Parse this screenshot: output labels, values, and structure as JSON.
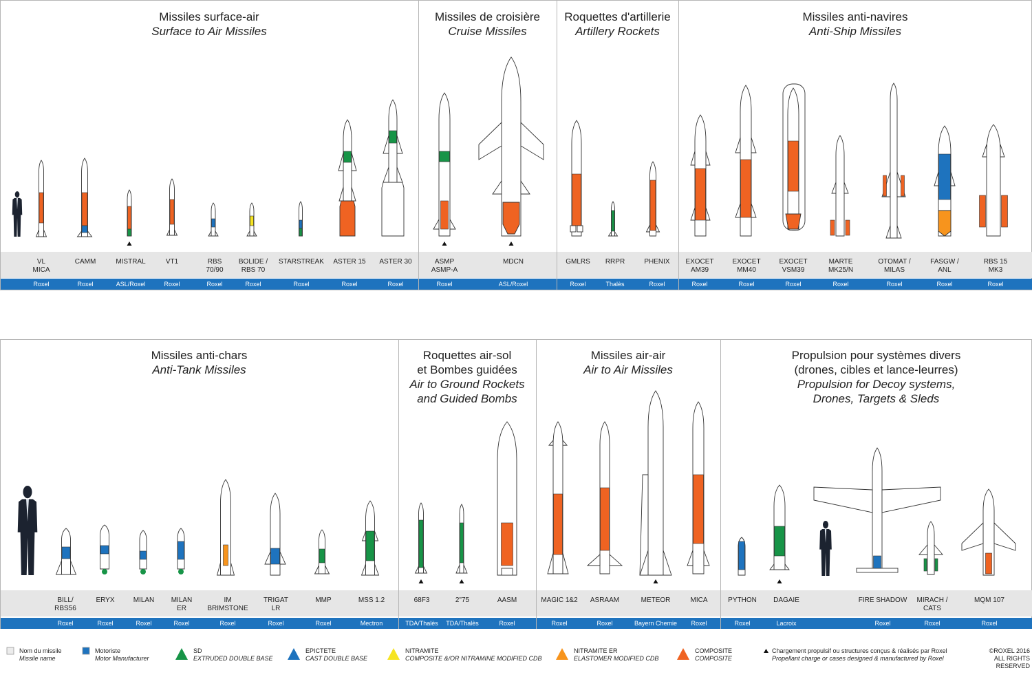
{
  "colors": {
    "composite": "#ef6322",
    "extruded_double_base": "#179447",
    "cast_double_base": "#1e73be",
    "nitramite": "#f6e421",
    "nitramite_er": "#f7941d",
    "maker_band": "#1e73be",
    "name_band": "#e6e6e6"
  },
  "top_sections": [
    {
      "fr": "Missiles surface-air",
      "en": "Surface to Air Missiles",
      "missiles": [
        {
          "name": "VL\nMICA",
          "maker": "Roxel"
        },
        {
          "name": "CAMM",
          "maker": "Roxel"
        },
        {
          "name": "MISTRAL",
          "maker": "ASL/Roxel"
        },
        {
          "name": "VT1",
          "maker": "Roxel"
        },
        {
          "name": "RBS\n70/90",
          "maker": "Roxel"
        },
        {
          "name": "BOLIDE /\nRBS 70",
          "maker": "Roxel"
        },
        {
          "name": "STARSTREAK",
          "maker": "Roxel"
        },
        {
          "name": "ASTER 15",
          "maker": "Roxel"
        },
        {
          "name": "ASTER 30",
          "maker": "Roxel"
        }
      ]
    },
    {
      "fr": "Missiles de croisière",
      "en": "Cruise Missiles",
      "missiles": [
        {
          "name": "ASMP\nASMP-A",
          "maker": "Roxel"
        },
        {
          "name": "MDCN",
          "maker": "ASL/Roxel"
        }
      ]
    },
    {
      "fr": "Roquettes d'artillerie",
      "en": "Artillery Rockets",
      "missiles": [
        {
          "name": "GMLRS",
          "maker": "Roxel"
        },
        {
          "name": "RRPR",
          "maker": "Thalès"
        },
        {
          "name": "PHENIX",
          "maker": "Roxel"
        }
      ]
    },
    {
      "fr": "Missiles anti-navires",
      "en": "Anti-Ship Missiles",
      "missiles": [
        {
          "name": "EXOCET\nAM39",
          "maker": "Roxel"
        },
        {
          "name": "EXOCET\nMM40",
          "maker": "Roxel"
        },
        {
          "name": "EXOCET\nVSM39",
          "maker": "Roxel"
        },
        {
          "name": "MARTE\nMK25/N",
          "maker": "Roxel"
        },
        {
          "name": "OTOMAT /\nMILAS",
          "maker": "Roxel"
        },
        {
          "name": "FASGW /\nANL",
          "maker": "Roxel"
        },
        {
          "name": "RBS 15\nMK3",
          "maker": "Roxel"
        }
      ]
    }
  ],
  "bottom_sections": [
    {
      "fr": "Missiles anti-chars",
      "en": "Anti-Tank Missiles",
      "missiles": [
        {
          "name": "BILL/\nRBS56",
          "maker": "Roxel"
        },
        {
          "name": "ERYX",
          "maker": "Roxel"
        },
        {
          "name": "MILAN",
          "maker": "Roxel"
        },
        {
          "name": "MILAN\nER",
          "maker": "Roxel"
        },
        {
          "name": "IM\nBRIMSTONE",
          "maker": "Roxel"
        },
        {
          "name": "TRIGAT\nLR",
          "maker": "Roxel"
        },
        {
          "name": "MMP",
          "maker": "Roxel"
        },
        {
          "name": "MSS 1.2",
          "maker": "Mectron"
        }
      ]
    },
    {
      "fr": "Roquettes air-sol\net Bombes guidées",
      "en": "Air to Ground Rockets\nand Guided Bombs",
      "missiles": [
        {
          "name": "68F3",
          "maker": "TDA/Thalès"
        },
        {
          "name": "2\"75",
          "maker": "TDA/Thalès"
        },
        {
          "name": "AASM",
          "maker": "Roxel"
        }
      ]
    },
    {
      "fr": "Missiles air-air",
      "en": "Air to Air Missiles",
      "missiles": [
        {
          "name": "MAGIC 1&2",
          "maker": "Roxel"
        },
        {
          "name": "ASRAAM",
          "maker": "Roxel"
        },
        {
          "name": "METEOR",
          "maker": "Bayern Chemie"
        },
        {
          "name": "MICA",
          "maker": "Roxel"
        }
      ]
    },
    {
      "fr": "Propulsion pour systèmes divers\n(drones, cibles et lance-leurres)",
      "en": "Propulsion for Decoy systems,\nDrones, Targets & Sleds",
      "missiles": [
        {
          "name": "PYTHON",
          "maker": "Roxel"
        },
        {
          "name": "DAGAIE",
          "maker": "Lacroix"
        },
        {
          "name": "FIRE SHADOW",
          "maker": "Roxel"
        },
        {
          "name": "MIRACH /\nCATS",
          "maker": "Roxel"
        },
        {
          "name": "MQM 107",
          "maker": "Roxel"
        }
      ]
    }
  ],
  "legend": {
    "missile_name": {
      "fr": "Nom du missile",
      "en": "Missile name"
    },
    "manufacturer": {
      "fr": "Motoriste",
      "en": "Motor Manufacturer"
    },
    "sd": {
      "fr": "SD",
      "en": "EXTRUDED DOUBLE BASE"
    },
    "epictete": {
      "fr": "EPICTETE",
      "en": "CAST DOUBLE BASE"
    },
    "nitramite": {
      "fr": "NITRAMITE",
      "en": "COMPOSITE &/OR NITRAMINE MODIFIED CDB"
    },
    "nitramite_er": {
      "fr": "NITRAMITE ER",
      "en": "ELASTOMER MODIFIED CDB"
    },
    "composite": {
      "fr": "COMPOSITE",
      "en": "COMPOSITE"
    },
    "roxel_note": {
      "fr": "Chargement propulsif ou structures conçus & réalisés par Roxel",
      "en": "Propellant charge or cases designed & manufactured by Roxel"
    },
    "copyright": {
      "l1": "©ROXEL 2016",
      "l2": "ALL RIGHTS RESERVED"
    }
  }
}
